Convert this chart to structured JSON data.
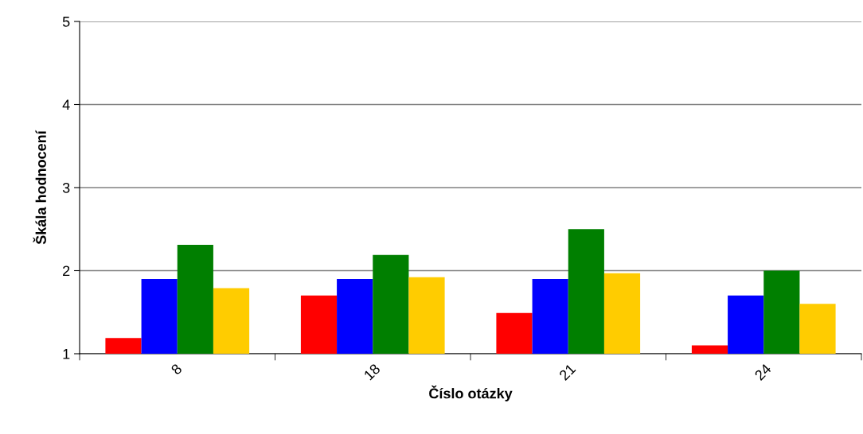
{
  "chart_data": {
    "type": "bar",
    "xlabel": "Číslo otázky",
    "ylabel": "Škála hodnocení",
    "categories": [
      "8",
      "18",
      "21",
      "24"
    ],
    "series": [
      {
        "color": "#ff0000",
        "values": [
          1.19,
          1.7,
          1.49,
          1.1
        ]
      },
      {
        "color": "#0000ff",
        "values": [
          1.9,
          1.9,
          1.9,
          1.7
        ]
      },
      {
        "color": "#007f00",
        "values": [
          2.31,
          2.19,
          2.5,
          2.0
        ]
      },
      {
        "color": "#ffcc00",
        "values": [
          1.79,
          1.92,
          1.97,
          1.6
        ]
      }
    ],
    "ylim": [
      1,
      5
    ],
    "yticks": [
      1,
      2,
      3,
      4,
      5
    ],
    "grid": "y",
    "legend": false
  }
}
